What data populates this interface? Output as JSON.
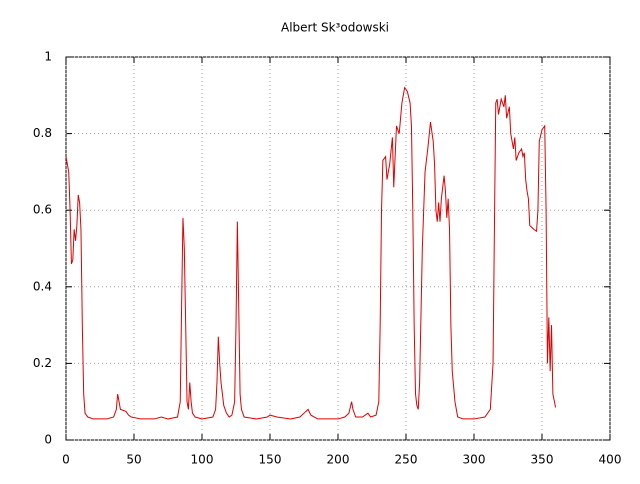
{
  "chart_data": {
    "type": "line",
    "title": "Albert Sk³odowski",
    "xlim": [
      0,
      400
    ],
    "xticks": [
      0,
      50,
      100,
      150,
      200,
      250,
      300,
      350,
      400
    ],
    "ylim": [
      0,
      1
    ],
    "yticks": [
      0,
      0.2,
      0.4,
      0.6,
      0.8,
      1
    ],
    "grid": true,
    "x": [
      0,
      2,
      3,
      4,
      5,
      6,
      7,
      8,
      9,
      10,
      11,
      12,
      13,
      14,
      16,
      20,
      30,
      35,
      37,
      38,
      39,
      40,
      44,
      46,
      48,
      55,
      65,
      70,
      75,
      82,
      84,
      85,
      86,
      87,
      88,
      89,
      90,
      91,
      92,
      93,
      95,
      100,
      108,
      110,
      111,
      112,
      113,
      114,
      116,
      118,
      120,
      122,
      124,
      125,
      126,
      127,
      128,
      129,
      131,
      140,
      148,
      150,
      155,
      165,
      172,
      175,
      178,
      180,
      185,
      200,
      205,
      208,
      210,
      211,
      213,
      218,
      222,
      224,
      228,
      230,
      231,
      232,
      233,
      235,
      236,
      238,
      240,
      241,
      243,
      245,
      247,
      249,
      251,
      253,
      254,
      255,
      256,
      257,
      258,
      259,
      260,
      262,
      264,
      266,
      268,
      270,
      271,
      272,
      273,
      274,
      275,
      276,
      278,
      279,
      280,
      281,
      282,
      283,
      284,
      286,
      288,
      292,
      300,
      308,
      312,
      314,
      315,
      316,
      317,
      318,
      320,
      322,
      323,
      324,
      326,
      327,
      329,
      330,
      331,
      333,
      335,
      336,
      337,
      338,
      339,
      340,
      341,
      344,
      346,
      347,
      348,
      350,
      352,
      353,
      354,
      355,
      356,
      357,
      358,
      360
    ],
    "series": [
      {
        "color": "#e00000",
        "values": [
          0.74,
          0.7,
          0.6,
          0.46,
          0.47,
          0.55,
          0.52,
          0.56,
          0.64,
          0.62,
          0.55,
          0.3,
          0.12,
          0.07,
          0.06,
          0.055,
          0.055,
          0.06,
          0.08,
          0.12,
          0.1,
          0.08,
          0.075,
          0.065,
          0.06,
          0.055,
          0.055,
          0.06,
          0.055,
          0.06,
          0.1,
          0.35,
          0.58,
          0.5,
          0.3,
          0.1,
          0.08,
          0.15,
          0.1,
          0.07,
          0.06,
          0.055,
          0.06,
          0.08,
          0.15,
          0.27,
          0.2,
          0.15,
          0.09,
          0.07,
          0.06,
          0.065,
          0.1,
          0.3,
          0.57,
          0.35,
          0.12,
          0.08,
          0.06,
          0.055,
          0.06,
          0.065,
          0.06,
          0.055,
          0.06,
          0.07,
          0.08,
          0.065,
          0.055,
          0.055,
          0.06,
          0.07,
          0.1,
          0.08,
          0.06,
          0.06,
          0.07,
          0.06,
          0.065,
          0.1,
          0.3,
          0.6,
          0.73,
          0.74,
          0.68,
          0.72,
          0.79,
          0.66,
          0.82,
          0.8,
          0.88,
          0.92,
          0.91,
          0.88,
          0.82,
          0.6,
          0.3,
          0.12,
          0.09,
          0.08,
          0.15,
          0.5,
          0.7,
          0.76,
          0.83,
          0.78,
          0.72,
          0.6,
          0.57,
          0.62,
          0.57,
          0.63,
          0.69,
          0.65,
          0.58,
          0.63,
          0.55,
          0.3,
          0.18,
          0.1,
          0.06,
          0.055,
          0.055,
          0.06,
          0.08,
          0.2,
          0.55,
          0.88,
          0.89,
          0.85,
          0.89,
          0.87,
          0.9,
          0.84,
          0.87,
          0.8,
          0.76,
          0.79,
          0.73,
          0.75,
          0.76,
          0.74,
          0.75,
          0.68,
          0.65,
          0.63,
          0.56,
          0.55,
          0.545,
          0.6,
          0.78,
          0.81,
          0.82,
          0.6,
          0.2,
          0.32,
          0.18,
          0.3,
          0.12,
          0.085
        ]
      }
    ]
  }
}
